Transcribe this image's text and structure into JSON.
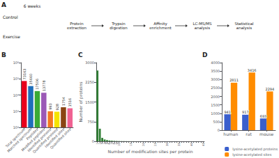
{
  "chart_data": [
    {
      "type": "diagram",
      "title": "A",
      "annotations": [
        "6 weeks",
        "Control",
        "Exercise",
        "Protein\nextraction",
        "Trypsin\ndigestion",
        "Affinity\nenrichment",
        "LC-MS/MS\nanalysis",
        "Statistical\nanalysis"
      ]
    },
    {
      "type": "bar",
      "title": "B",
      "categories": [
        "Total spectrum",
        "Matched spectrum",
        "Peptides",
        "Modified peptides",
        "Identified proteins",
        "Quantified proteins",
        "Identified sites",
        "Quantified sites"
      ],
      "values": [
        73163,
        35660,
        17506,
        13778,
        993,
        928,
        1754,
        1516
      ],
      "colors": [
        "#e8001c",
        "#1e6fba",
        "#3aaa35",
        "#9b59b6",
        "#f47920",
        "#f5e400",
        "#8b4513",
        "#f06292"
      ],
      "log": "y",
      "ylim": [
        100,
        1000000
      ],
      "yticks": [
        {
          "value": 100,
          "label": "10²"
        },
        {
          "value": 1000,
          "label": "10³"
        },
        {
          "value": 10000,
          "label": "10⁴"
        },
        {
          "value": 100000,
          "label": "10⁵"
        },
        {
          "value": 1000000,
          "label": "10⁶"
        }
      ],
      "data_labels": true,
      "grid": false
    },
    {
      "type": "bar",
      "title": "C",
      "xlabel": "Number of modification sites per protein",
      "ylabel": "Number of proteins",
      "categories": [
        "1",
        "2",
        "3",
        "4",
        "5",
        "6",
        "7",
        "8",
        "9",
        "10",
        null,
        null,
        null,
        null,
        "15",
        null,
        null,
        null,
        null,
        "20",
        null,
        null,
        null,
        null,
        "25",
        null,
        null,
        null,
        null,
        "30",
        null,
        null,
        null,
        null,
        "35",
        null,
        null,
        null,
        null,
        "40",
        null,
        null,
        null,
        null,
        "45"
      ],
      "values": [
        2700,
        480,
        130,
        70,
        45,
        30,
        22,
        16,
        12,
        9,
        7,
        6,
        5,
        4,
        3,
        3,
        2,
        2,
        2,
        2,
        1,
        1,
        1,
        1,
        1,
        1,
        1,
        1,
        1,
        1,
        1,
        1,
        1,
        1,
        1,
        1,
        1,
        1,
        1,
        1,
        1,
        1,
        1,
        1,
        1
      ],
      "color": "#2e7d32",
      "ylim": [
        0,
        3000
      ],
      "yticks": [
        0,
        750,
        1500,
        2250,
        3000
      ],
      "grid": false
    },
    {
      "type": "bar",
      "title": "D",
      "categories": [
        "human",
        "rat",
        "mouse"
      ],
      "series": [
        {
          "name": "lysine-acetylated proteins",
          "color": "#3a5fcd",
          "values": [
            941,
            917,
            693
          ]
        },
        {
          "name": "lysine-acetylated sites",
          "color": "#ff8c00",
          "values": [
            2811,
            3416,
            2294
          ]
        }
      ],
      "ylim": [
        0,
        4000
      ],
      "yticks": [
        0,
        500,
        1000,
        1500,
        2000,
        2500,
        3000,
        3500,
        4000
      ],
      "legend": "lower right",
      "data_labels": true,
      "grid": false
    }
  ]
}
